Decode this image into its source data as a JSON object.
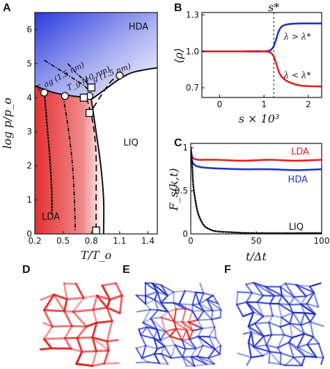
{
  "panel_labels": {
    "a": "A",
    "b": "B",
    "c": "C",
    "d": "D",
    "e": "E",
    "f": "F"
  },
  "colors": {
    "red": "#e02020",
    "blue": "#2233cc",
    "lda_fill": "#e83a3a",
    "hda_fill": "#3344dd"
  },
  "chart_data": [
    {
      "type": "line",
      "panel": "A",
      "xlabel": "T/T_o",
      "ylabel": "log p/p_o",
      "xlim": [
        0.2,
        1.5
      ],
      "ylim": [
        0,
        6.5
      ],
      "xticks": [
        "0.2",
        "0.5",
        "0.8",
        "1.1",
        "1.4"
      ],
      "yticks": [
        "0",
        "1",
        "2",
        "3",
        "4",
        "5",
        "6"
      ],
      "regions": [
        {
          "name": "HDA",
          "x": 1.3,
          "y": 6.0
        },
        {
          "name": "LIQ",
          "x": 1.22,
          "y": 2.6
        },
        {
          "name": "LDA",
          "x": 0.37,
          "y": 0.42
        }
      ],
      "annotations": [
        {
          "text": "T_ag (1.5 nm)",
          "x": 0.48,
          "y": 4.55,
          "angle": -28
        },
        {
          "text": "T_g (10 nm)",
          "x": 0.78,
          "y": 4.5,
          "angle": -25
        },
        {
          "text": "T_g (1.5 nm)",
          "x": 0.98,
          "y": 4.62,
          "angle": -20
        }
      ],
      "series": [
        {
          "style": "solid",
          "x": [
            0.2,
            0.4,
            0.6,
            0.75,
            0.8
          ],
          "y": [
            4.35,
            4.15,
            4.05,
            4.0,
            3.95
          ]
        },
        {
          "style": "solid",
          "x": [
            0.8,
            0.95,
            1.1,
            1.25,
            1.5
          ],
          "y": [
            3.95,
            4.25,
            4.55,
            4.75,
            4.88
          ]
        },
        {
          "style": "solid",
          "x": [
            0.8,
            0.85,
            0.9,
            0.93,
            0.93
          ],
          "y": [
            3.95,
            3.0,
            2.0,
            1.0,
            0.0
          ]
        },
        {
          "style": "dotted",
          "x": [
            0.3,
            0.33,
            0.36,
            0.38,
            0.38
          ],
          "y": [
            4.2,
            3.2,
            2.2,
            1.2,
            0.55
          ]
        },
        {
          "style": "dashdot",
          "x": [
            0.5,
            0.56,
            0.6,
            0.62,
            0.63
          ],
          "y": [
            4.05,
            3.0,
            2.0,
            1.0,
            0.1
          ]
        },
        {
          "style": "dashed",
          "x": [
            0.75,
            0.82,
            0.85,
            0.85,
            0.85
          ],
          "y": [
            4.0,
            3.2,
            2.3,
            1.0,
            0.1
          ]
        },
        {
          "style": "dashdot",
          "x": [
            0.3,
            0.5,
            0.7,
            0.78
          ],
          "y": [
            5.1,
            4.75,
            4.4,
            4.2
          ]
        },
        {
          "style": "dashdot",
          "x": [
            0.55,
            0.65,
            0.75,
            0.8
          ],
          "y": [
            5.0,
            4.7,
            4.45,
            4.3
          ]
        },
        {
          "style": "dashed",
          "x": [
            0.82,
            0.9,
            1.0,
            1.1
          ],
          "y": [
            3.7,
            4.05,
            4.45,
            4.72
          ]
        }
      ],
      "points": [
        {
          "marker": "circle",
          "x": 0.3,
          "y": 4.15
        },
        {
          "marker": "circle",
          "x": 0.52,
          "y": 4.05
        },
        {
          "marker": "circle",
          "x": 0.78,
          "y": 4.05
        },
        {
          "marker": "circle",
          "x": 1.1,
          "y": 4.65
        },
        {
          "marker": "square",
          "x": 0.72,
          "y": 4.0
        },
        {
          "marker": "square",
          "x": 0.8,
          "y": 4.3
        },
        {
          "marker": "square",
          "x": 0.78,
          "y": 3.55
        },
        {
          "marker": "square",
          "x": 0.85,
          "y": 0.1
        }
      ]
    },
    {
      "type": "line",
      "panel": "B",
      "xlabel": "s × 10³",
      "ylabel": "⟨ρ⟩",
      "xlim": [
        -0.4,
        2.3
      ],
      "ylim": [
        0.62,
        1.32
      ],
      "xticks": [
        "0",
        "1",
        "2"
      ],
      "yticks": [
        "0.7",
        "1.0",
        "1.3"
      ],
      "annotations": [
        {
          "text": "s*",
          "x": 1.22,
          "y": 1.32
        },
        {
          "text": "λ > λ*",
          "x": 1.75,
          "y": 1.1
        },
        {
          "text": "λ < λ*",
          "x": 1.75,
          "y": 0.78
        }
      ],
      "vline": {
        "x": 1.22
      },
      "series": [
        {
          "name": "λ > λ*",
          "color": "#2233cc",
          "x": [
            -0.4,
            0.0,
            0.5,
            1.0,
            1.2,
            1.35,
            1.5,
            1.8,
            2.3
          ],
          "y": [
            1.0,
            1.0,
            1.0,
            1.0,
            1.03,
            1.18,
            1.22,
            1.23,
            1.23
          ]
        },
        {
          "name": "λ < λ*",
          "color": "#e02020",
          "x": [
            -0.4,
            0.0,
            0.5,
            1.0,
            1.2,
            1.35,
            1.5,
            1.8,
            2.3
          ],
          "y": [
            1.0,
            1.0,
            1.0,
            1.0,
            0.97,
            0.82,
            0.76,
            0.72,
            0.71
          ]
        }
      ]
    },
    {
      "type": "line",
      "panel": "C",
      "xlabel": "t/Δt",
      "ylabel": "F_s(k,t)",
      "xlim": [
        0,
        100
      ],
      "ylim": [
        0,
        1.05
      ],
      "xticks": [
        "0",
        "50",
        "100"
      ],
      "yticks": [
        "0",
        "0.5",
        "1"
      ],
      "series": [
        {
          "name": "LDA",
          "color": "#e02020",
          "style": "solid",
          "x": [
            0,
            1,
            3,
            6,
            10,
            20,
            40,
            60,
            80,
            100
          ],
          "y": [
            1.0,
            0.9,
            0.87,
            0.86,
            0.86,
            0.86,
            0.85,
            0.86,
            0.85,
            0.86
          ]
        },
        {
          "name": "HDA",
          "color": "#2233cc",
          "style": "solid",
          "x": [
            0,
            1,
            3,
            6,
            10,
            20,
            40,
            60,
            80,
            100
          ],
          "y": [
            1.0,
            0.85,
            0.8,
            0.78,
            0.77,
            0.76,
            0.75,
            0.75,
            0.74,
            0.75
          ]
        },
        {
          "name": "LIQ",
          "color": "#111111",
          "style": "dotted",
          "x": [
            0,
            1,
            2,
            4,
            6,
            10,
            15,
            20,
            30,
            50,
            100
          ],
          "y": [
            1.0,
            0.8,
            0.55,
            0.35,
            0.22,
            0.1,
            0.05,
            0.03,
            0.02,
            0.01,
            0.01
          ]
        }
      ]
    }
  ]
}
